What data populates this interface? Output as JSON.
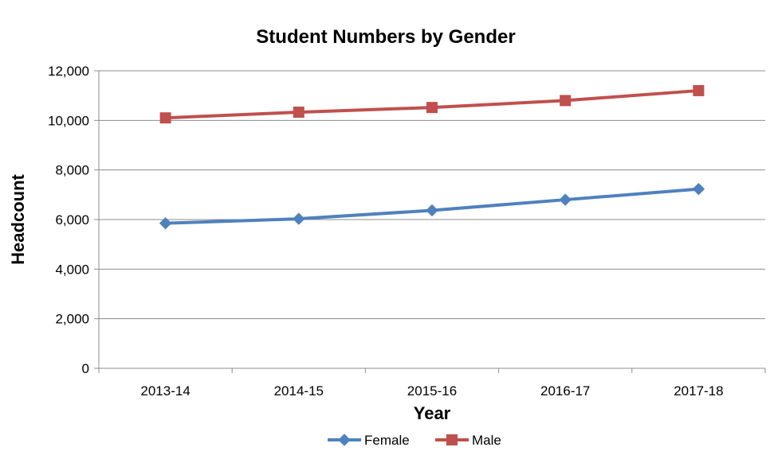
{
  "chart_data": {
    "type": "line",
    "title": "Student Numbers by Gender",
    "xlabel": "Year",
    "ylabel": "Headcount",
    "categories": [
      "2013-14",
      "2014-15",
      "2015-16",
      "2016-17",
      "2017-18"
    ],
    "ylim": [
      0,
      12000
    ],
    "yticks": [
      0,
      2000,
      4000,
      6000,
      8000,
      10000,
      12000
    ],
    "ytick_labels": [
      "0",
      "2,000",
      "4,000",
      "6,000",
      "8,000",
      "10,000",
      "12,000"
    ],
    "grid": true,
    "legend_position": "bottom",
    "series": [
      {
        "name": "Female",
        "values": [
          5850,
          6030,
          6370,
          6800,
          7230
        ],
        "color": "#4F81BD",
        "marker": "diamond"
      },
      {
        "name": "Male",
        "values": [
          10100,
          10330,
          10520,
          10800,
          11200
        ],
        "color": "#C0504D",
        "marker": "square"
      }
    ]
  }
}
